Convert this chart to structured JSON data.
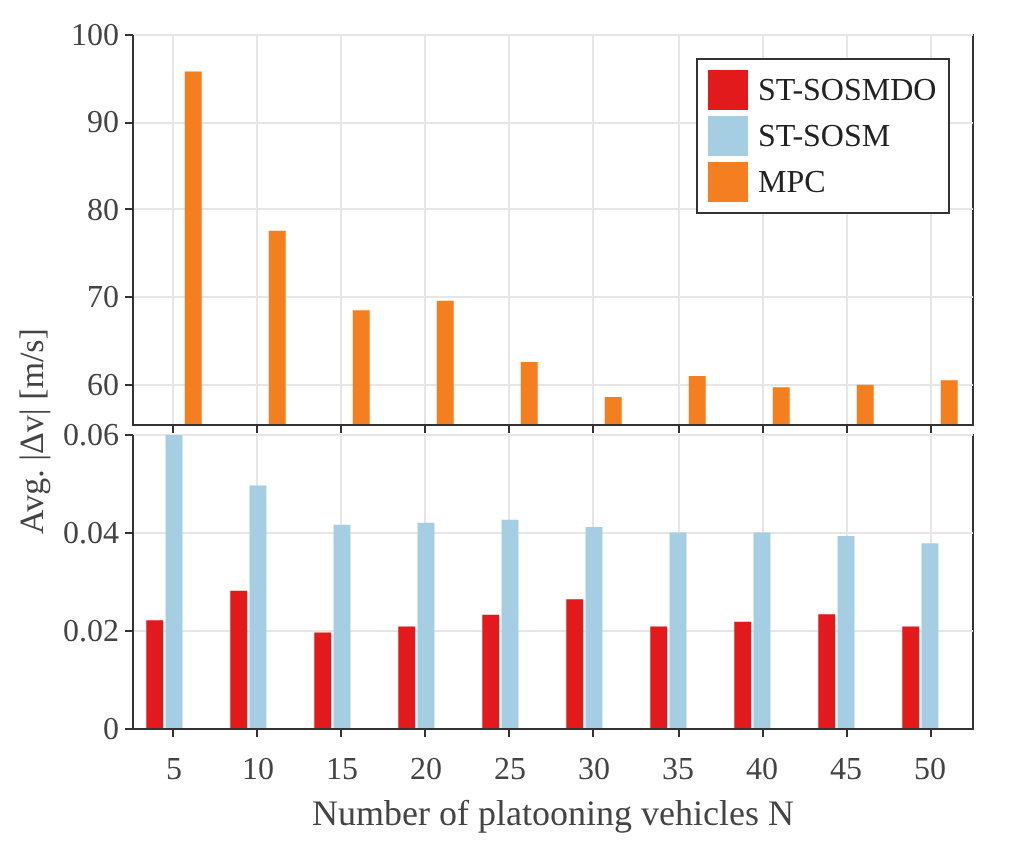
{
  "chart_data": [
    {
      "type": "bar",
      "ylabel": "Avg. |Δv| [m/s]",
      "categories": [
        "5",
        "10",
        "15",
        "20",
        "25",
        "30",
        "35",
        "40",
        "45",
        "50"
      ],
      "series": [
        {
          "name": "ST-SOSMDO",
          "color": "#e31a1c",
          "values": [
            null,
            null,
            null,
            null,
            null,
            null,
            null,
            null,
            null,
            null
          ]
        },
        {
          "name": "ST-SOSM",
          "color": "#a6cee3",
          "values": [
            null,
            null,
            null,
            null,
            null,
            null,
            null,
            null,
            null,
            null
          ]
        },
        {
          "name": "MPC",
          "color": "#f47f20",
          "values": [
            95.7,
            77.5,
            68.4,
            69.5,
            62.5,
            58.5,
            60.9,
            59.6,
            59.9,
            60.4
          ]
        }
      ],
      "ylim": [
        55.4,
        100
      ],
      "yticks": [
        60,
        70,
        80,
        90,
        100
      ],
      "grid": true,
      "legend": "top right",
      "tick_labels": "y"
    },
    {
      "type": "bar",
      "xlabel": "Number of platooning vehicles N",
      "categories": [
        "5",
        "10",
        "15",
        "20",
        "25",
        "30",
        "35",
        "40",
        "45",
        "50"
      ],
      "series": [
        {
          "color": "#e31a1c",
          "values": [
            0.022,
            0.028,
            0.0195,
            0.0207,
            0.0231,
            0.0263,
            0.0207,
            0.0217,
            0.0232,
            0.0207
          ]
        },
        {
          "color": "#a6cee3",
          "values": [
            0.0598,
            0.0495,
            0.0415,
            0.0419,
            0.0425,
            0.041,
            0.0399,
            0.0399,
            0.0392,
            0.0377
          ]
        },
        {
          "color": "#f47f20",
          "values": [
            null,
            null,
            null,
            null,
            null,
            null,
            null,
            null,
            null,
            null
          ]
        }
      ],
      "ylim": [
        0,
        0.06
      ],
      "yticks": [
        0,
        0.02,
        0.04,
        0.06
      ],
      "grid": true
    }
  ]
}
